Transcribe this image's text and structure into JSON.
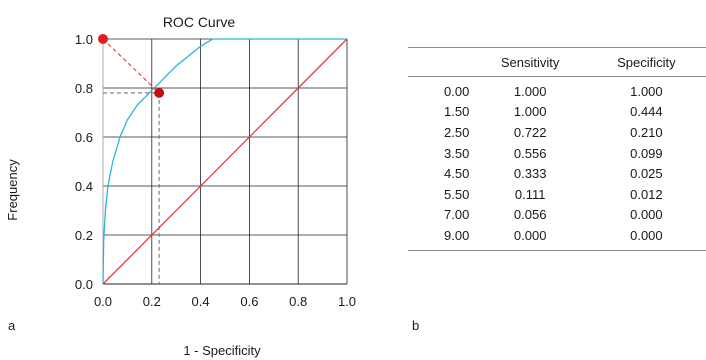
{
  "chart_data": [
    {
      "type": "line",
      "title": "ROC Curve",
      "xlabel": "1 - Specificity",
      "ylabel": "Frequency",
      "xlim": [
        0,
        1
      ],
      "ylim": [
        0,
        1
      ],
      "x_ticks": [
        "0.0",
        "0.2",
        "0.4",
        "0.6",
        "0.8",
        "1.0"
      ],
      "y_ticks": [
        "0.0",
        "0.2",
        "0.4",
        "0.6",
        "0.8",
        "1.0"
      ],
      "grid": true,
      "series": [
        {
          "color": "#29b6d6",
          "x": [
            0,
            0.003,
            0.01,
            0.02,
            0.04,
            0.07,
            0.1,
            0.14,
            0.2,
            0.25,
            0.3,
            0.35,
            0.4,
            0.45,
            0.47,
            1.0
          ],
          "y": [
            0,
            0.18,
            0.3,
            0.4,
            0.5,
            0.6,
            0.67,
            0.73,
            0.79,
            0.84,
            0.89,
            0.93,
            0.97,
            1.0,
            1.0,
            1.0
          ]
        },
        {
          "color": "#e8393a",
          "x": [
            0,
            1
          ],
          "y": [
            0,
            1
          ]
        }
      ],
      "annotations": [
        {
          "kind": "point",
          "x": 0.0,
          "y": 1.0,
          "color": "#dd1f1f"
        },
        {
          "kind": "point",
          "x": 0.23,
          "y": 0.78,
          "color": "#c41010"
        },
        {
          "kind": "dashed",
          "from": [
            0.0,
            1.0
          ],
          "to": [
            0.23,
            0.78
          ],
          "color": "#e8393a"
        },
        {
          "kind": "dashed",
          "from": [
            0.0,
            0.78
          ],
          "to": [
            0.23,
            0.78
          ],
          "color": "#777777"
        },
        {
          "kind": "dashed",
          "from": [
            0.23,
            0.78
          ],
          "to": [
            0.23,
            0.0
          ],
          "color": "#777777"
        }
      ]
    },
    {
      "type": "table",
      "columns": [
        "",
        "Sensitivity",
        "Specificity"
      ],
      "rows": [
        [
          "0.00",
          "1.000",
          "1.000"
        ],
        [
          "1.50",
          "1.000",
          "0.444"
        ],
        [
          "2.50",
          "0.722",
          "0.210"
        ],
        [
          "3.50",
          "0.556",
          "0.099"
        ],
        [
          "4.50",
          "0.333",
          "0.025"
        ],
        [
          "5.50",
          "0.111",
          "0.012"
        ],
        [
          "7.00",
          "0.056",
          "0.000"
        ],
        [
          "9.00",
          "0.000",
          "0.000"
        ]
      ]
    }
  ],
  "panel_labels": {
    "a": "a",
    "b": "b"
  }
}
